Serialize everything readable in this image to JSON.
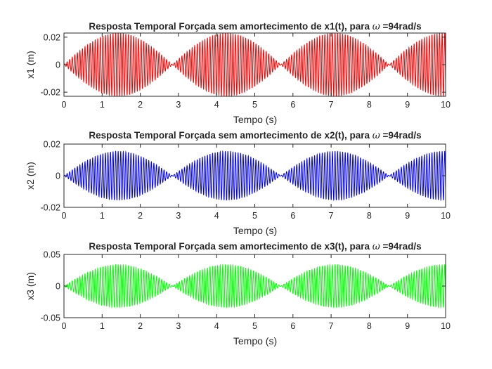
{
  "chart_data": [
    {
      "type": "line",
      "title_prefix": "Resposta Temporal Forçada sem amortecimento de x1(t), para ",
      "title_symbol": "ω",
      "title_suffix": " =94rad/s",
      "xlabel": "Tempo (s)",
      "ylabel": "x1 (m)",
      "xlim": [
        0,
        10
      ],
      "ylim": [
        -0.023,
        0.023
      ],
      "xticks": [
        0,
        1,
        2,
        3,
        4,
        5,
        6,
        7,
        8,
        9,
        10
      ],
      "yticks": [
        -0.02,
        0,
        0.02
      ],
      "ytick_labels": [
        "-0.02",
        "0",
        "0.02"
      ],
      "grid": false,
      "series": [
        {
          "color": "#ff0000",
          "amplitude": 0.023,
          "carrier_rad_s": 94,
          "beat_nodes_s": [
            0,
            2.84,
            5.68,
            8.52
          ]
        }
      ]
    },
    {
      "type": "line",
      "title_prefix": "Resposta Temporal Forçada sem amortecimento de x2(t), para ",
      "title_symbol": "ω",
      "title_suffix": " =94rad/s",
      "xlabel": "Tempo (s)",
      "ylabel": "x2 (m)",
      "xlim": [
        0,
        10
      ],
      "ylim": [
        -0.02,
        0.02
      ],
      "xticks": [
        0,
        1,
        2,
        3,
        4,
        5,
        6,
        7,
        8,
        9,
        10
      ],
      "yticks": [
        -0.02,
        0,
        0.02
      ],
      "ytick_labels": [
        "-0.02",
        "0",
        "0.02"
      ],
      "grid": false,
      "series": [
        {
          "color": "#0000ff",
          "amplitude": 0.0155,
          "carrier_rad_s": 94,
          "beat_nodes_s": [
            0,
            2.84,
            5.68,
            8.52
          ]
        }
      ]
    },
    {
      "type": "line",
      "title_prefix": "Resposta Temporal Forçada sem amortecimento de x3(t), para ",
      "title_symbol": "ω",
      "title_suffix": " =94rad/s",
      "xlabel": "Tempo (s)",
      "ylabel": "x3 (m)",
      "xlim": [
        0,
        10
      ],
      "ylim": [
        -0.05,
        0.05
      ],
      "xticks": [
        0,
        1,
        2,
        3,
        4,
        5,
        6,
        7,
        8,
        9,
        10
      ],
      "yticks": [
        -0.05,
        0,
        0.05
      ],
      "ytick_labels": [
        "-0.05",
        "0",
        "0.05"
      ],
      "grid": false,
      "series": [
        {
          "color": "#00ff00",
          "amplitude": 0.034,
          "carrier_rad_s": 94,
          "beat_nodes_s": [
            0,
            2.84,
            5.68,
            8.52
          ]
        }
      ]
    }
  ]
}
